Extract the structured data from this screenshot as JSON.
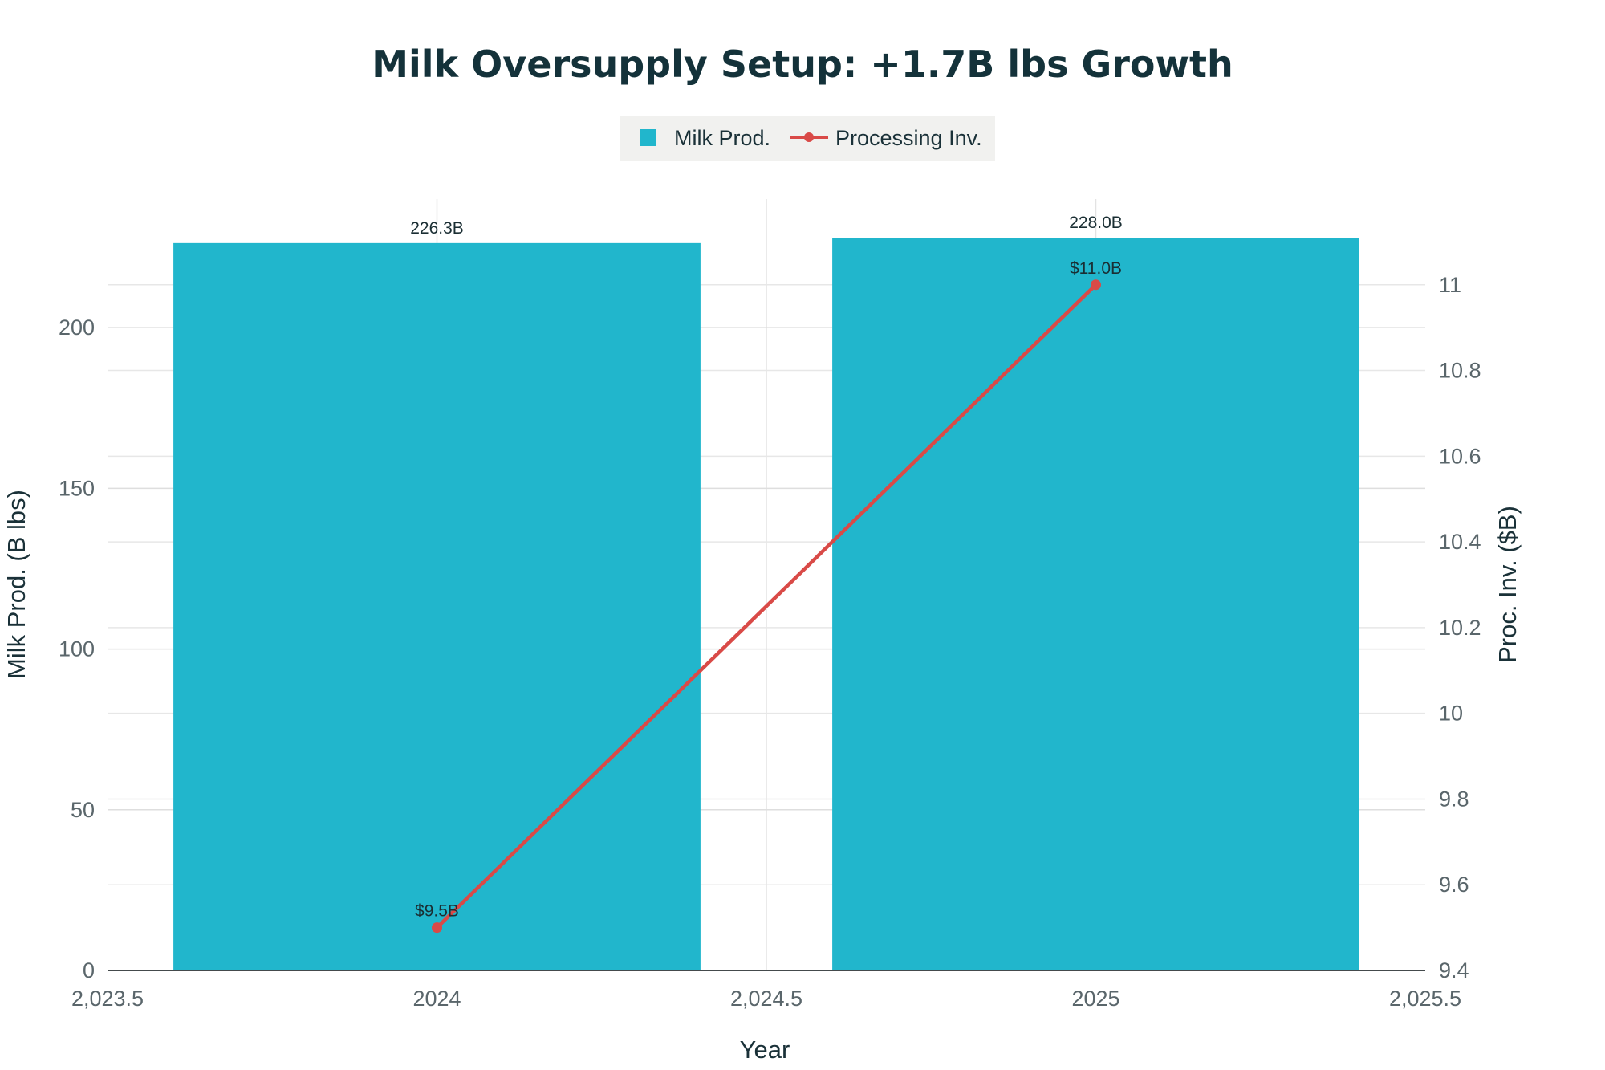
{
  "chart_data": {
    "type": "bar",
    "title": "Milk Oversupply Setup: +1.7B lbs Growth",
    "xlabel": "Year",
    "ylabel": "Milk Prod. (B lbs)",
    "y2label": "Proc. Inv. ($B)",
    "xlim": [
      2023.5,
      2025.5
    ],
    "ylim": [
      0,
      240
    ],
    "y2lim": [
      9.4,
      11.2
    ],
    "x_ticks": [
      2023.5,
      2024,
      2024.5,
      2025,
      2025.5
    ],
    "x_tick_labels": [
      "2,023.5",
      "2024",
      "2,024.5",
      "2025",
      "2,025.5"
    ],
    "y_ticks": [
      0,
      50,
      100,
      150,
      200
    ],
    "y_tick_labels": [
      "0",
      "50",
      "100",
      "150",
      "200"
    ],
    "y2_ticks": [
      9.4,
      9.6,
      9.8,
      10,
      10.2,
      10.4,
      10.6,
      10.8,
      11
    ],
    "y2_tick_labels": [
      "9.4",
      "9.6",
      "9.8",
      "10",
      "10.2",
      "10.4",
      "10.6",
      "10.8",
      "11"
    ],
    "legend_position": "top-center",
    "grid": true,
    "series": [
      {
        "name": "Milk Prod.",
        "type": "bar",
        "axis": "left",
        "color": "#21b6cc",
        "x": [
          2024,
          2025
        ],
        "values": [
          226.3,
          228.0
        ],
        "labels": [
          "226.3B",
          "228.0B"
        ]
      },
      {
        "name": "Processing Inv.",
        "type": "line",
        "axis": "right",
        "color": "#d94a47",
        "x": [
          2024,
          2025
        ],
        "values": [
          9.5,
          11.0
        ],
        "labels": [
          "$9.5B",
          "$11.0B"
        ]
      }
    ]
  }
}
